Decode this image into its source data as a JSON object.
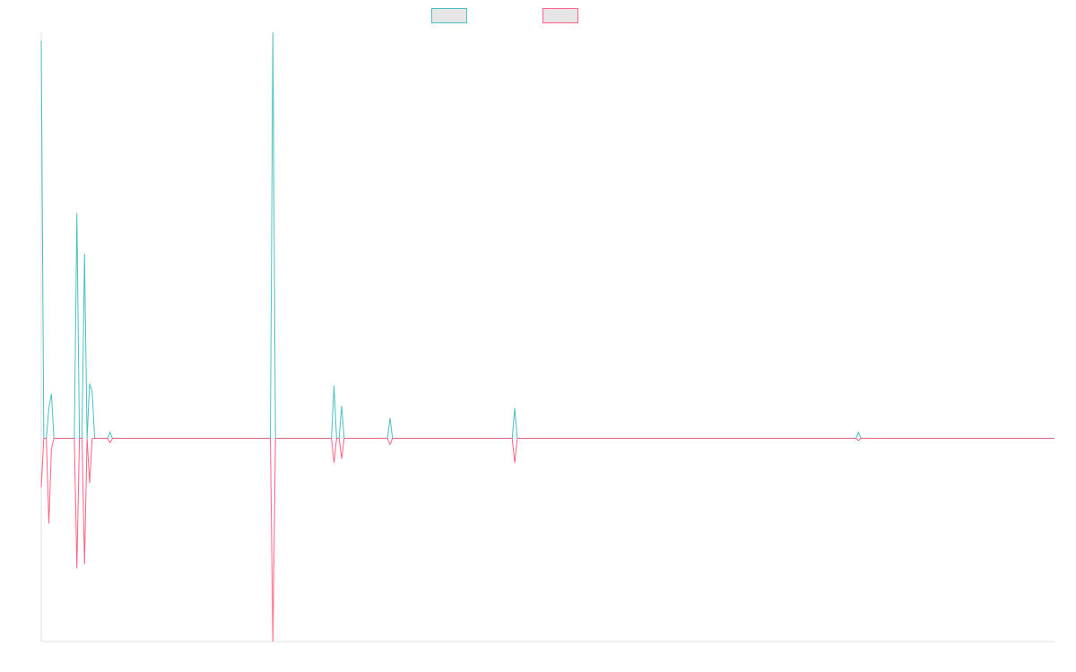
{
  "chart_data": {
    "type": "line",
    "title": "",
    "xlabel": "",
    "ylabel": "",
    "x_count": 399,
    "ylim": [
      -1,
      2
    ],
    "grid": false,
    "legend": {
      "placement": "top-center"
    },
    "series": [
      {
        "name": "",
        "color": "#4bc0c0",
        "fill": "#e6e6e6",
        "points": [
          [
            0,
            1.96
          ],
          [
            1,
            0
          ],
          [
            2,
            0
          ],
          [
            3,
            0.15
          ],
          [
            4,
            0.22
          ],
          [
            5,
            0
          ],
          [
            6,
            0
          ],
          [
            7,
            0
          ],
          [
            8,
            0
          ],
          [
            9,
            0
          ],
          [
            10,
            0
          ],
          [
            11,
            0
          ],
          [
            12,
            0
          ],
          [
            13,
            0
          ],
          [
            14,
            1.11
          ],
          [
            15,
            0
          ],
          [
            16,
            0
          ],
          [
            17,
            0.91
          ],
          [
            18,
            0
          ],
          [
            19,
            0.27
          ],
          [
            20,
            0.23
          ],
          [
            21,
            0
          ],
          [
            22,
            0
          ],
          [
            23,
            0
          ],
          [
            24,
            0
          ],
          [
            25,
            0
          ],
          [
            26,
            0
          ],
          [
            27,
            0.03
          ],
          [
            28,
            0
          ],
          [
            90,
            0
          ],
          [
            91,
            2.0
          ],
          [
            92,
            0
          ],
          [
            114,
            0
          ],
          [
            115,
            0.26
          ],
          [
            116,
            0
          ],
          [
            117,
            0
          ],
          [
            118,
            0.16
          ],
          [
            119,
            0
          ],
          [
            120,
            0
          ],
          [
            121,
            0
          ],
          [
            136,
            0
          ],
          [
            137,
            0.1
          ],
          [
            138,
            0
          ],
          [
            185,
            0
          ],
          [
            186,
            0.15
          ],
          [
            187,
            0
          ],
          [
            320,
            0
          ],
          [
            321,
            0.03
          ],
          [
            322,
            0
          ],
          [
            398,
            0
          ]
        ]
      },
      {
        "name": "",
        "color": "#ff6384",
        "fill": "#e6e6e6",
        "points": [
          [
            0,
            -0.24
          ],
          [
            1,
            0
          ],
          [
            2,
            0
          ],
          [
            3,
            -0.42
          ],
          [
            4,
            -0.05
          ],
          [
            5,
            0
          ],
          [
            6,
            0
          ],
          [
            7,
            0
          ],
          [
            8,
            0
          ],
          [
            9,
            0
          ],
          [
            10,
            0
          ],
          [
            11,
            0
          ],
          [
            12,
            0
          ],
          [
            13,
            0
          ],
          [
            14,
            -0.64
          ],
          [
            15,
            0
          ],
          [
            16,
            0
          ],
          [
            17,
            -0.62
          ],
          [
            18,
            0
          ],
          [
            19,
            -0.22
          ],
          [
            20,
            0
          ],
          [
            21,
            0
          ],
          [
            22,
            0
          ],
          [
            23,
            0
          ],
          [
            24,
            0
          ],
          [
            25,
            0
          ],
          [
            26,
            0
          ],
          [
            27,
            -0.02
          ],
          [
            28,
            0
          ],
          [
            90,
            0
          ],
          [
            91,
            -1.0
          ],
          [
            92,
            0
          ],
          [
            114,
            0
          ],
          [
            115,
            -0.12
          ],
          [
            116,
            0
          ],
          [
            117,
            0
          ],
          [
            118,
            -0.1
          ],
          [
            119,
            0
          ],
          [
            120,
            0
          ],
          [
            121,
            0
          ],
          [
            136,
            0
          ],
          [
            137,
            -0.03
          ],
          [
            138,
            0
          ],
          [
            185,
            0
          ],
          [
            186,
            -0.12
          ],
          [
            187,
            0
          ],
          [
            320,
            0
          ],
          [
            321,
            -0.01
          ],
          [
            322,
            0
          ],
          [
            398,
            0
          ]
        ]
      }
    ]
  }
}
